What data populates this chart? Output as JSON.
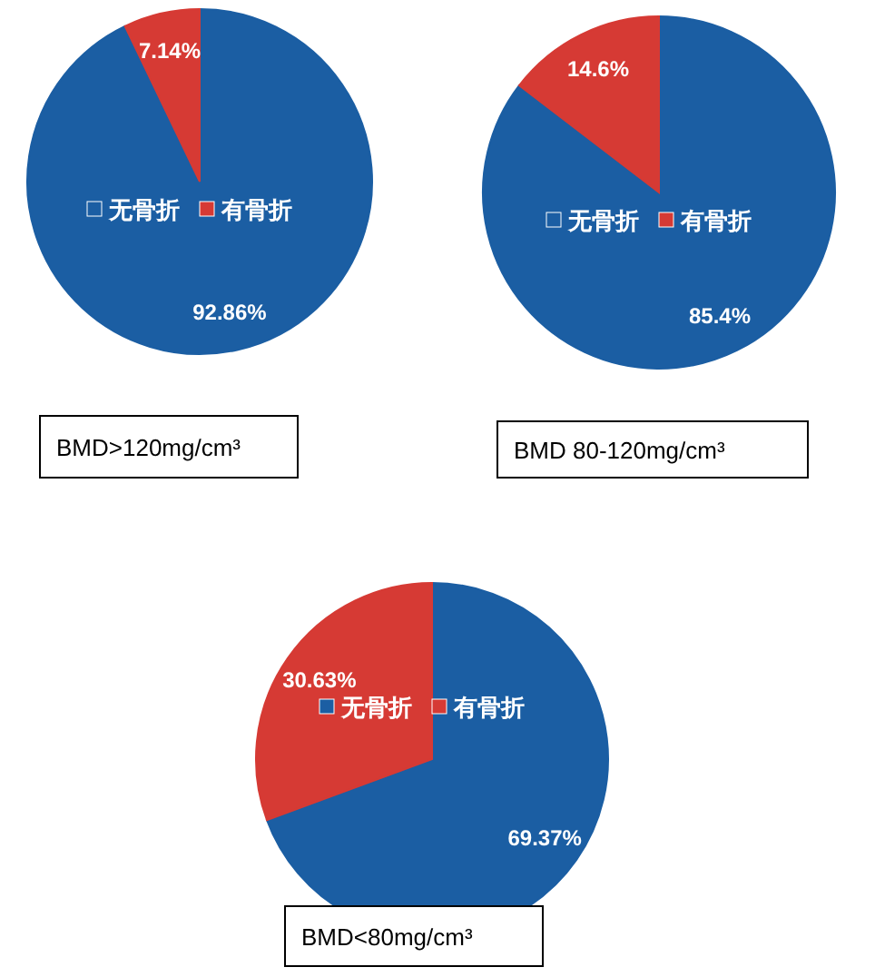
{
  "chart_data": [
    {
      "type": "pie",
      "title": "BMD>120mg/cm³",
      "categories": [
        "无骨折",
        "有骨折"
      ],
      "values": [
        92.86,
        7.14
      ],
      "colors": [
        "#1b5ea3",
        "#d63a34"
      ],
      "value_labels": [
        "92.86%",
        "7.14%"
      ],
      "legend": "center"
    },
    {
      "type": "pie",
      "title": "BMD 80-120mg/cm³",
      "categories": [
        "无骨折",
        "有骨折"
      ],
      "values": [
        85.4,
        14.6
      ],
      "colors": [
        "#1b5ea3",
        "#d63a34"
      ],
      "value_labels": [
        "85.4%",
        "14.6%"
      ],
      "legend": "center"
    },
    {
      "type": "pie",
      "title": "BMD<80mg/cm³",
      "categories": [
        "无骨折",
        "有骨折"
      ],
      "values": [
        69.37,
        30.63
      ],
      "colors": [
        "#1b5ea3",
        "#d63a34"
      ],
      "value_labels": [
        "69.37%",
        "30.63%"
      ],
      "legend": "center"
    }
  ]
}
